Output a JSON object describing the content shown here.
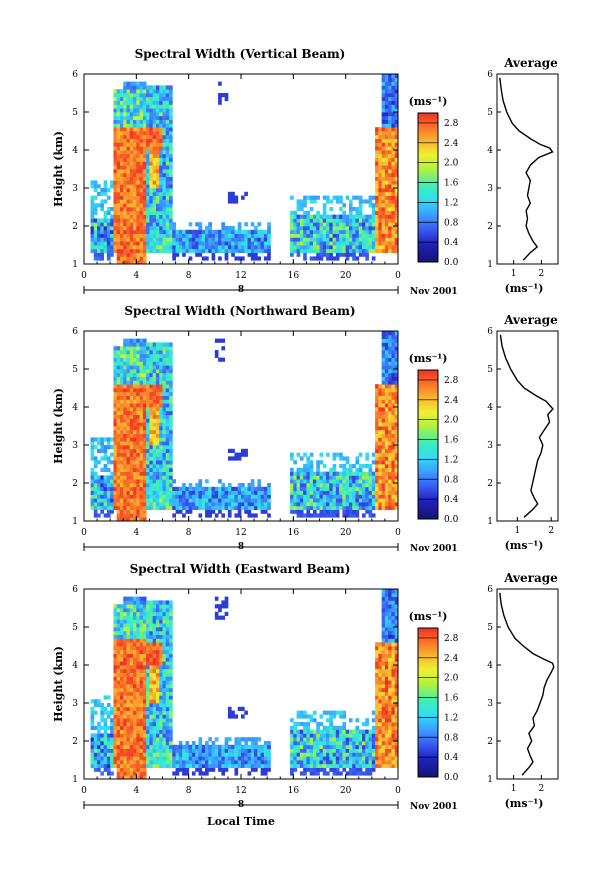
{
  "chart_data": [
    {
      "type": "heatmap",
      "title": "Spectral Width (Vertical Beam)",
      "ylabel": "Height (km)",
      "xticks": [
        "0",
        "4",
        "8",
        "12",
        "16",
        "20",
        "0"
      ],
      "xlim": [
        0,
        24
      ],
      "ylim": [
        1,
        6
      ],
      "yticks": [
        "1",
        "2",
        "3",
        "4",
        "5",
        "6"
      ],
      "date_label": "8",
      "month_label": "Nov 2001",
      "colorbar": {
        "unit": "(ms⁻¹)",
        "ticks": [
          "0.0",
          "0.4",
          "0.8",
          "1.2",
          "1.6",
          "2.0",
          "2.4",
          "2.8"
        ],
        "range": [
          0,
          3.0
        ]
      },
      "avg_profile": {
        "title": "Average",
        "xlabel": "(ms⁻¹)",
        "xticks": [
          "1",
          "2"
        ],
        "xlim": [
          0.4,
          2.6
        ],
        "heights": [
          1.1,
          1.3,
          1.45,
          1.6,
          1.8,
          2.0,
          2.2,
          2.4,
          2.6,
          2.8,
          3.0,
          3.2,
          3.4,
          3.6,
          3.8,
          3.95,
          4.05,
          4.15,
          4.3,
          4.5,
          4.7,
          5.0,
          5.3,
          5.6,
          5.9
        ],
        "values": [
          1.35,
          1.6,
          1.85,
          1.7,
          1.55,
          1.45,
          1.5,
          1.45,
          1.6,
          1.5,
          1.55,
          1.6,
          1.45,
          1.6,
          1.9,
          2.4,
          2.3,
          1.95,
          1.6,
          1.2,
          0.95,
          0.75,
          0.62,
          0.55,
          0.5
        ]
      }
    },
    {
      "type": "heatmap",
      "title": "Spectral Width (Northward Beam)",
      "ylabel": "Height (km)",
      "xticks": [
        "0",
        "4",
        "8",
        "12",
        "16",
        "20",
        "0"
      ],
      "xlim": [
        0,
        24
      ],
      "ylim": [
        1,
        6
      ],
      "yticks": [
        "1",
        "2",
        "3",
        "4",
        "5",
        "6"
      ],
      "date_label": "8",
      "month_label": "Nov 2001",
      "colorbar": {
        "unit": "(ms⁻¹)",
        "ticks": [
          "0.0",
          "0.4",
          "0.8",
          "1.2",
          "1.6",
          "2.0",
          "2.4",
          "2.8"
        ],
        "range": [
          0,
          3.0
        ]
      },
      "avg_profile": {
        "title": "Average",
        "xlabel": "(ms⁻¹)",
        "xticks": [
          "1",
          "2"
        ],
        "xlim": [
          0.4,
          2.2
        ],
        "heights": [
          1.1,
          1.3,
          1.45,
          1.6,
          1.8,
          2.0,
          2.2,
          2.4,
          2.6,
          2.8,
          3.0,
          3.2,
          3.4,
          3.6,
          3.8,
          3.95,
          4.05,
          4.15,
          4.3,
          4.5,
          4.7,
          5.0,
          5.3,
          5.6,
          5.9
        ],
        "values": [
          1.2,
          1.45,
          1.6,
          1.5,
          1.4,
          1.45,
          1.5,
          1.55,
          1.6,
          1.7,
          1.75,
          1.65,
          1.8,
          1.95,
          1.9,
          2.05,
          1.95,
          1.85,
          1.55,
          1.2,
          1.0,
          0.8,
          0.65,
          0.55,
          0.5
        ]
      }
    },
    {
      "type": "heatmap",
      "title": "Spectral Width (Eastward Beam)",
      "ylabel": "Height (km)",
      "xlabel": "Local Time",
      "xticks": [
        "0",
        "4",
        "8",
        "12",
        "16",
        "20",
        "0"
      ],
      "xlim": [
        0,
        24
      ],
      "ylim": [
        1,
        6
      ],
      "yticks": [
        "1",
        "2",
        "3",
        "4",
        "5",
        "6"
      ],
      "date_label": "8",
      "month_label": "Nov 2001",
      "colorbar": {
        "unit": "(ms⁻¹)",
        "ticks": [
          "0.0",
          "0.4",
          "0.8",
          "1.2",
          "1.6",
          "2.0",
          "2.4",
          "2.8"
        ],
        "range": [
          0,
          3.0
        ]
      },
      "avg_profile": {
        "title": "Average",
        "xlabel": "(ms⁻¹)",
        "xticks": [
          "1",
          "2"
        ],
        "xlim": [
          0.4,
          2.6
        ],
        "heights": [
          1.1,
          1.3,
          1.45,
          1.6,
          1.8,
          2.0,
          2.2,
          2.4,
          2.6,
          2.8,
          3.0,
          3.2,
          3.4,
          3.6,
          3.8,
          3.95,
          4.05,
          4.15,
          4.3,
          4.5,
          4.7,
          5.0,
          5.3,
          5.6,
          5.9
        ],
        "values": [
          1.3,
          1.55,
          1.7,
          1.6,
          1.5,
          1.65,
          1.55,
          1.75,
          1.7,
          1.85,
          1.95,
          2.05,
          2.1,
          2.2,
          2.35,
          2.45,
          2.4,
          2.1,
          1.7,
          1.35,
          1.05,
          0.8,
          0.65,
          0.55,
          0.5
        ]
      }
    }
  ]
}
